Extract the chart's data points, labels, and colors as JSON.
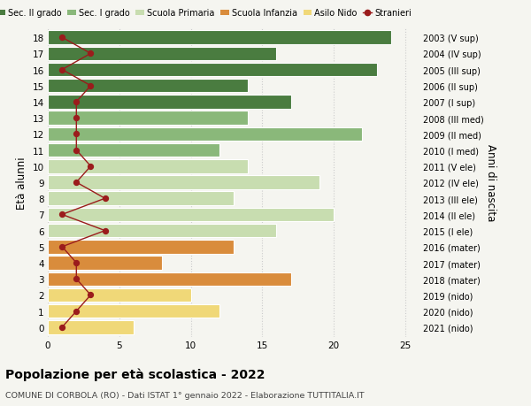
{
  "ages": [
    18,
    17,
    16,
    15,
    14,
    13,
    12,
    11,
    10,
    9,
    8,
    7,
    6,
    5,
    4,
    3,
    2,
    1,
    0
  ],
  "bar_values": [
    24,
    16,
    23,
    14,
    17,
    14,
    22,
    12,
    14,
    19,
    13,
    20,
    16,
    13,
    8,
    17,
    10,
    12,
    6
  ],
  "bar_colors": [
    "#4a7c40",
    "#4a7c40",
    "#4a7c40",
    "#4a7c40",
    "#4a7c40",
    "#8ab87a",
    "#8ab87a",
    "#8ab87a",
    "#c8ddb0",
    "#c8ddb0",
    "#c8ddb0",
    "#c8ddb0",
    "#c8ddb0",
    "#d98c3c",
    "#d98c3c",
    "#d98c3c",
    "#f0d878",
    "#f0d878",
    "#f0d878"
  ],
  "stranieri": [
    1,
    3,
    1,
    3,
    2,
    2,
    2,
    2,
    3,
    2,
    4,
    1,
    4,
    1,
    2,
    2,
    3,
    2,
    1
  ],
  "right_labels": [
    "2003 (V sup)",
    "2004 (IV sup)",
    "2005 (III sup)",
    "2006 (II sup)",
    "2007 (I sup)",
    "2008 (III med)",
    "2009 (II med)",
    "2010 (I med)",
    "2011 (V ele)",
    "2012 (IV ele)",
    "2013 (III ele)",
    "2014 (II ele)",
    "2015 (I ele)",
    "2016 (mater)",
    "2017 (mater)",
    "2018 (mater)",
    "2019 (nido)",
    "2020 (nido)",
    "2021 (nido)"
  ],
  "legend_labels": [
    "Sec. II grado",
    "Sec. I grado",
    "Scuola Primaria",
    "Scuola Infanzia",
    "Asilo Nido",
    "Stranieri"
  ],
  "legend_colors": [
    "#4a7c40",
    "#8ab87a",
    "#c8ddb0",
    "#d98c3c",
    "#f0d878",
    "#9b1c1c"
  ],
  "ylabel": "Età alunni",
  "right_ylabel": "Anni di nascita",
  "title": "Popolazione per età scolastica - 2022",
  "subtitle": "COMUNE DI CORBOLA (RO) - Dati ISTAT 1° gennaio 2022 - Elaborazione TUTTITALIA.IT",
  "xlim": [
    0,
    26
  ],
  "xticks": [
    0,
    5,
    10,
    15,
    20,
    25
  ],
  "stranieri_color": "#9b1c1c",
  "bg_color": "#f5f5f0",
  "grid_color": "#cccccc"
}
